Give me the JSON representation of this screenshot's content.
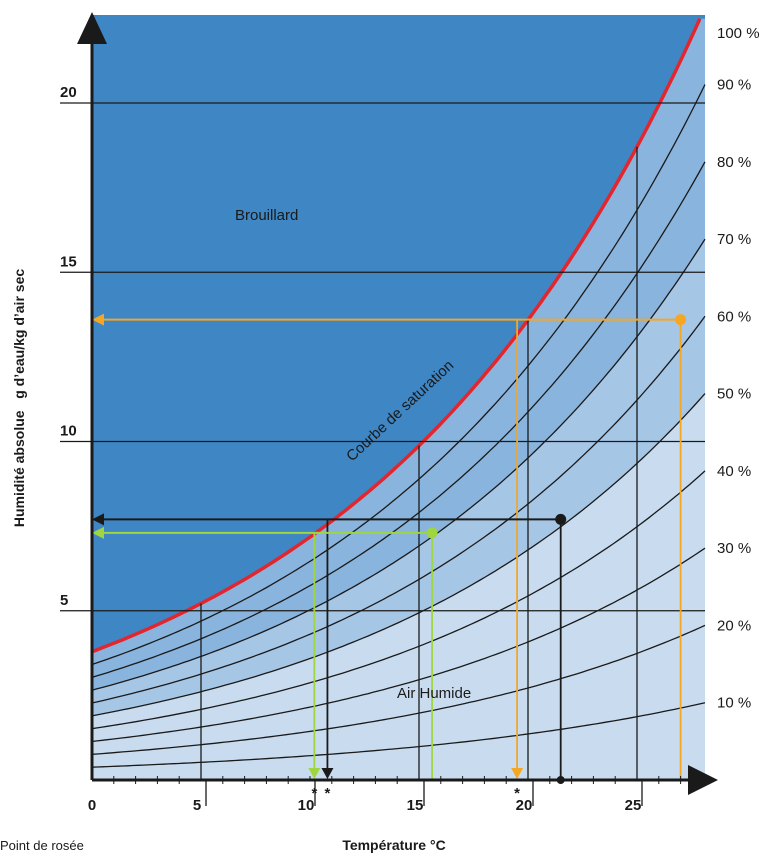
{
  "chart_data": {
    "type": "line",
    "title": "",
    "xlabel": "Température °C",
    "ylabel": "Humidité absolue   g d’eau/kg d’air sec",
    "xlim": [
      0,
      28
    ],
    "ylim": [
      0,
      23
    ],
    "x_ticks": [
      "0",
      "5",
      "10",
      "15",
      "20",
      "25"
    ],
    "y_ticks": [
      "5",
      "10",
      "15",
      "20"
    ],
    "saturation_formula": "3.79*exp(0.06386*T)",
    "series": [
      {
        "name": "100 %",
        "rh": 1.0
      },
      {
        "name": "90 %",
        "rh": 0.9
      },
      {
        "name": "80 %",
        "rh": 0.8
      },
      {
        "name": "70 %",
        "rh": 0.7
      },
      {
        "name": "60 %",
        "rh": 0.6
      },
      {
        "name": "50 %",
        "rh": 0.5
      },
      {
        "name": "40 %",
        "rh": 0.4
      },
      {
        "name": "30 %",
        "rh": 0.3
      },
      {
        "name": "20 %",
        "rh": 0.2
      },
      {
        "name": "10 %",
        "rh": 0.1
      }
    ],
    "regions": {
      "fog": "Brouillard",
      "curve": "Courbe de saturation",
      "humid": "Air Humide"
    },
    "examples": [
      {
        "color": "#f5a623",
        "temp": 27,
        "y": 13.6,
        "dew_point": 19.5
      },
      {
        "color": "#1a1a1a",
        "temp": 21.5,
        "y": 7.7,
        "dew_point": 10.8
      },
      {
        "color": "#9fd640",
        "temp": 15.6,
        "y": 7.3,
        "dew_point": 10.2
      }
    ],
    "star_label": "*",
    "legend_note": "Point de rosée"
  },
  "colors": {
    "fog": "#3f86c4",
    "band_dark": "#89b4dd",
    "band_mid": "#a6c6e6",
    "band_light": "#c9dcef",
    "saturation": "#e3262e",
    "grid": "#1a1a1a"
  }
}
